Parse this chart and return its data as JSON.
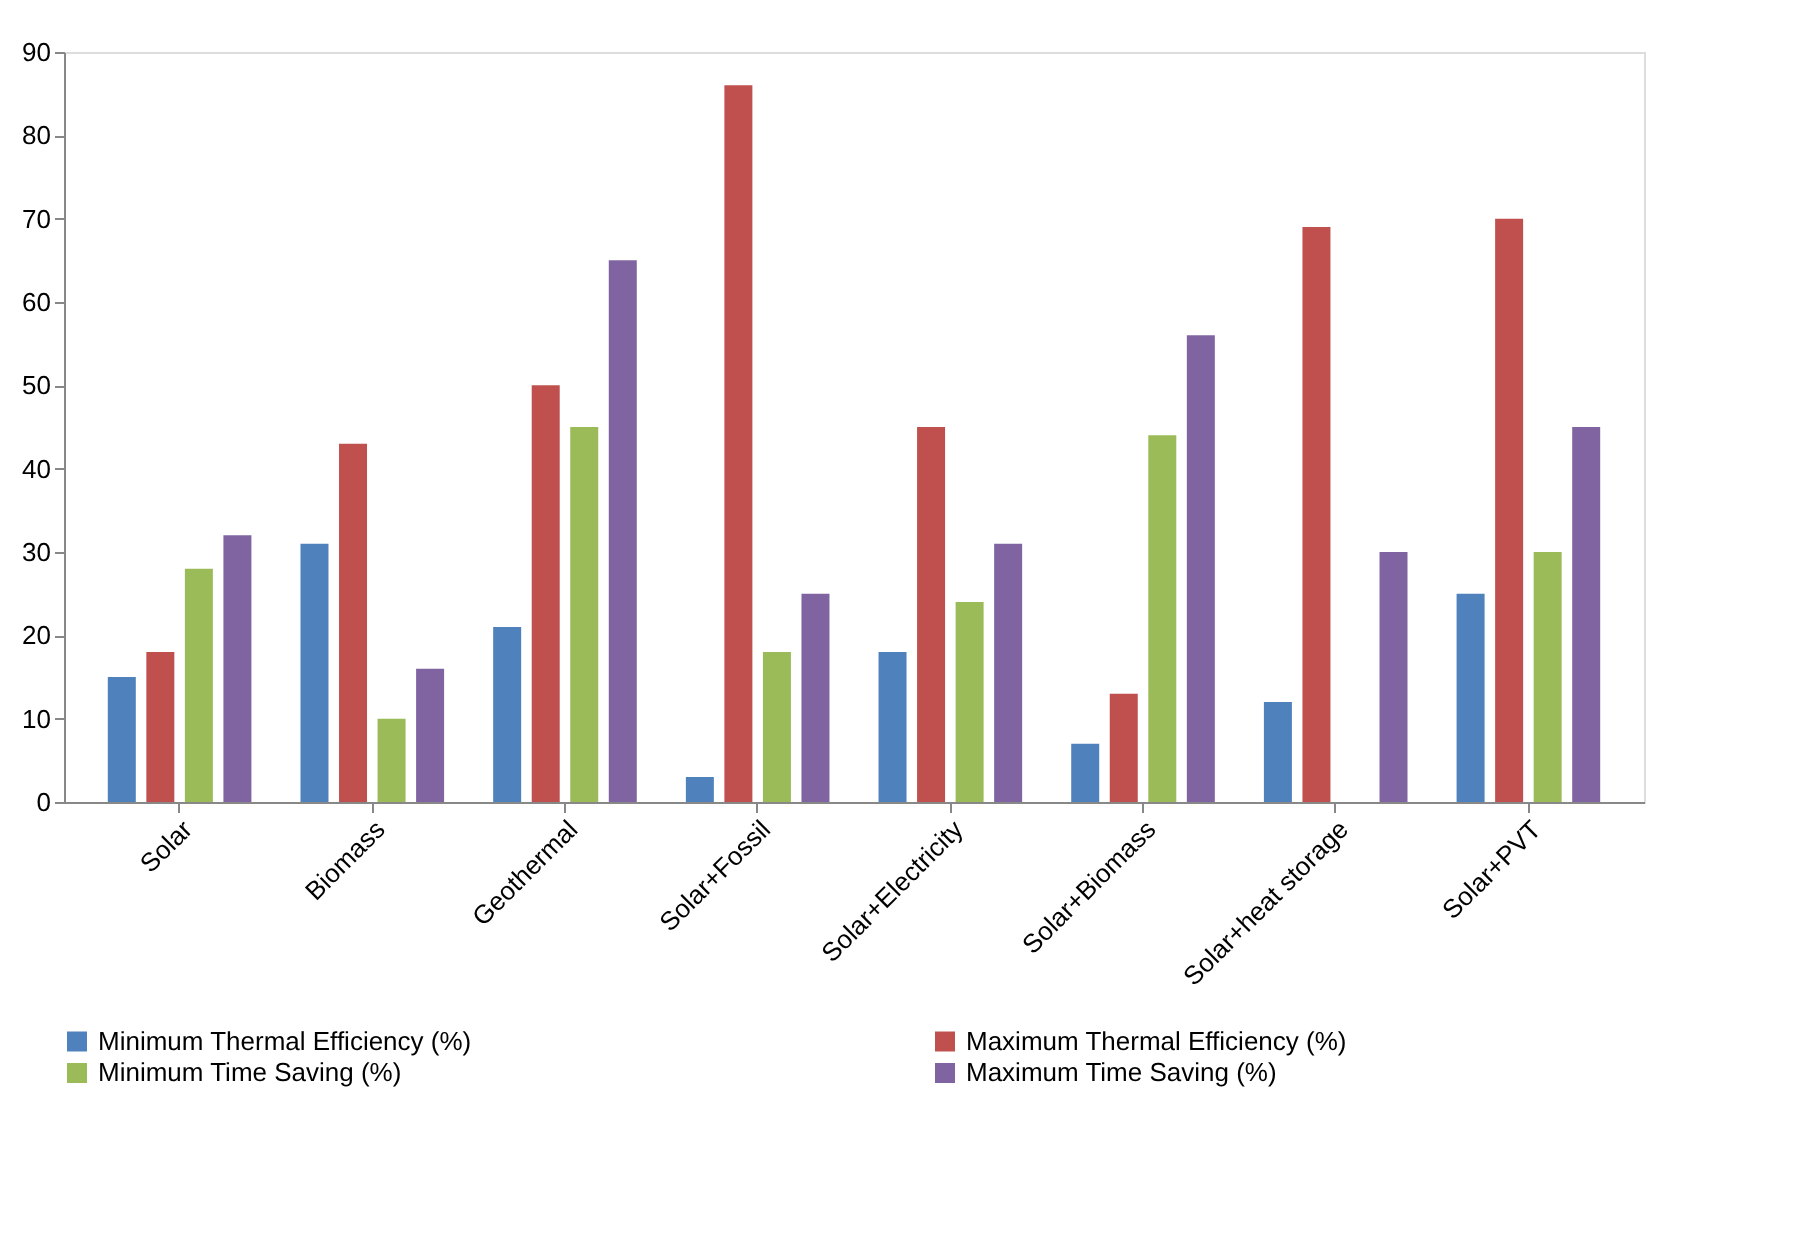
{
  "chart_data": {
    "type": "bar",
    "categories": [
      "Solar",
      "Biomass",
      "Geothermal",
      "Solar+Fossil",
      "Solar+Electricity",
      "Solar+Biomass",
      "Solar+heat storage",
      "Solar+PVT"
    ],
    "series": [
      {
        "name": "Minimum Thermal Efficiency (%)",
        "color": "#4f81bd",
        "values": [
          15,
          31,
          21,
          3,
          18,
          7,
          12,
          25
        ]
      },
      {
        "name": "Maximum Thermal Efficiency (%)",
        "color": "#c0504d",
        "values": [
          18,
          43,
          50,
          86,
          45,
          13,
          69,
          70
        ]
      },
      {
        "name": "Minimum Time Saving (%)",
        "color": "#9bbb59",
        "values": [
          28,
          10,
          45,
          18,
          24,
          44,
          0,
          30
        ]
      },
      {
        "name": "Maximum Time Saving (%)",
        "color": "#8064a2",
        "values": [
          32,
          16,
          65,
          25,
          31,
          56,
          30,
          45
        ]
      }
    ],
    "ylim": [
      0,
      90
    ],
    "yticks": [
      0,
      10,
      20,
      30,
      40,
      50,
      60,
      70,
      80,
      90
    ],
    "grid": false,
    "legend": "bottom"
  }
}
